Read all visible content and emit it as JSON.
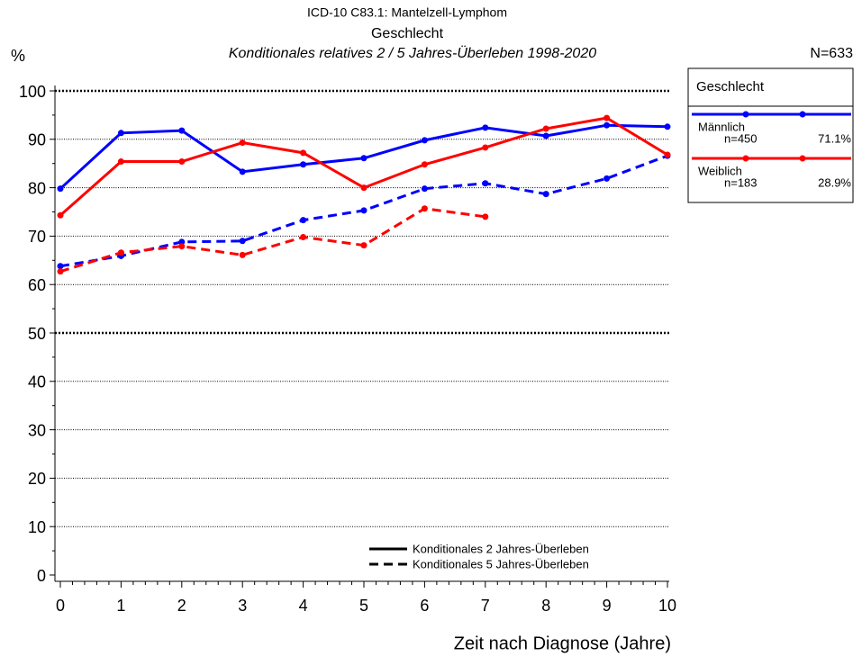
{
  "chart_data": {
    "type": "line",
    "title": "ICD-10 C83.1: Mantelzell-Lymphom",
    "subtitle": "Geschlecht",
    "subtitle2": "Konditionales relatives 2 / 5 Jahres-Überleben 1998-2020",
    "ylabel": "%",
    "total": "N=633",
    "xlabel": "Zeit nach Diagnose (Jahre)",
    "legend_title": "Geschlecht",
    "style_legend": [
      "Konditionales 2 Jahres-Überleben",
      "Konditionales 5 Jahres-Überleben"
    ],
    "x": [
      0,
      1,
      2,
      3,
      4,
      5,
      6,
      7,
      8,
      9,
      10
    ],
    "xlim": [
      0,
      10
    ],
    "xticks": [
      0,
      1,
      2,
      3,
      4,
      5,
      6,
      7,
      8,
      9,
      10
    ],
    "ylim": [
      0,
      100
    ],
    "yticks": [
      0,
      10,
      20,
      30,
      40,
      50,
      60,
      70,
      80,
      90,
      100
    ],
    "grid": true,
    "series": [
      {
        "name": "Männlich",
        "color": "#0000ff",
        "n": "n=450",
        "share": "71.1%",
        "values": [
          79.8,
          91.3,
          91.8,
          83.3,
          84.8,
          86.1,
          89.8,
          92.4,
          90.7,
          92.9,
          92.6
        ],
        "values_5yr": [
          63.8,
          65.9,
          68.8,
          69.0,
          73.3,
          75.3,
          79.8,
          80.9,
          78.7,
          81.9,
          86.6
        ]
      },
      {
        "name": "Weiblich",
        "color": "#ff0000",
        "n": "n=183",
        "share": "28.9%",
        "values": [
          74.3,
          85.4,
          85.4,
          89.3,
          87.2,
          80.0,
          84.8,
          88.3,
          92.2,
          94.4,
          86.8
        ],
        "values_5yr": [
          62.7,
          66.6,
          67.9,
          66.1,
          69.8,
          68.1,
          75.7,
          74.0,
          null,
          null,
          null
        ]
      }
    ]
  }
}
